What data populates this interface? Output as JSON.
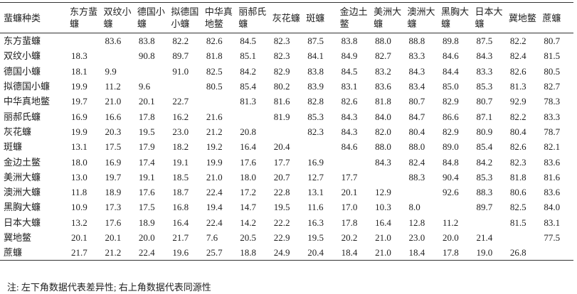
{
  "table": {
    "header": [
      "蜚蠊种类",
      "东方蜚蠊",
      "双纹小蠊",
      "德国小蠊",
      "拟德国小蠊",
      "中华真地鳖",
      "丽郝氏蠊",
      "灰花蠊",
      "斑蠊",
      "金边土鳖",
      "美洲大蠊",
      "澳洲大蠊",
      "黑胸大蠊",
      "日本大蠊",
      "冀地鳖",
      "蔗蠊"
    ],
    "rows": [
      [
        "东方蜚蠊",
        null,
        "83.6",
        "83.8",
        "82.2",
        "82.6",
        "84.5",
        "82.3",
        "87.5",
        "83.8",
        "88.0",
        "88.8",
        "89.8",
        "87.5",
        "82.2",
        "80.7"
      ],
      [
        "双纹小蠊",
        "18.3",
        null,
        "90.8",
        "89.7",
        "81.8",
        "85.1",
        "82.3",
        "84.1",
        "84.9",
        "82.7",
        "83.3",
        "84.6",
        "84.3",
        "82.4",
        "81.5"
      ],
      [
        "德国小蠊",
        "18.1",
        "9.9",
        null,
        "91.0",
        "82.5",
        "84.2",
        "82.9",
        "83.8",
        "84.5",
        "83.2",
        "84.3",
        "84.4",
        "83.3",
        "82.6",
        "80.5"
      ],
      [
        "拟德国小蠊",
        "19.9",
        "11.2",
        "9.6",
        null,
        "80.5",
        "85.4",
        "80.2",
        "83.9",
        "83.1",
        "83.6",
        "83.4",
        "85.0",
        "85.3",
        "81.3",
        "82.7"
      ],
      [
        "中华真地鳖",
        "19.7",
        "21.0",
        "20.1",
        "22.7",
        null,
        "81.3",
        "81.6",
        "82.8",
        "82.6",
        "81.8",
        "80.7",
        "82.9",
        "80.7",
        "92.9",
        "78.3"
      ],
      [
        "丽郝氏蠊",
        "16.9",
        "16.6",
        "17.8",
        "16.2",
        "21.6",
        null,
        "81.9",
        "85.3",
        "84.3",
        "84.0",
        "84.7",
        "86.6",
        "87.1",
        "82.2",
        "83.3"
      ],
      [
        "灰花蠊",
        "19.9",
        "20.3",
        "19.5",
        "23.0",
        "21.2",
        "20.8",
        null,
        "82.3",
        "84.3",
        "82.0",
        "80.4",
        "82.9",
        "80.9",
        "80.4",
        "78.7"
      ],
      [
        "斑蠊",
        "13.1",
        "17.5",
        "17.9",
        "18.2",
        "19.2",
        "16.4",
        "20.4",
        null,
        "84.6",
        "88.0",
        "88.0",
        "89.0",
        "85.4",
        "82.6",
        "82.1"
      ],
      [
        "金边土鳖",
        "18.0",
        "16.9",
        "17.4",
        "19.1",
        "19.9",
        "17.6",
        "17.7",
        "16.9",
        null,
        "84.3",
        "82.4",
        "84.8",
        "84.2",
        "82.3",
        "83.6"
      ],
      [
        "美洲大蠊",
        "13.0",
        "19.7",
        "19.1",
        "18.5",
        "21.0",
        "18.0",
        "20.7",
        "12.7",
        "17.7",
        null,
        "88.3",
        "90.4",
        "85.3",
        "81.8",
        "81.6"
      ],
      [
        "澳洲大蠊",
        "11.8",
        "18.9",
        "17.6",
        "18.7",
        "22.4",
        "17.2",
        "22.8",
        "13.1",
        "20.1",
        "12.9",
        null,
        "92.6",
        "88.3",
        "80.6",
        "83.6"
      ],
      [
        "黑胸大蠊",
        "10.9",
        "17.3",
        "17.5",
        "16.8",
        "19.4",
        "14.7",
        "19.5",
        "11.6",
        "17.0",
        "10.3",
        "8.0",
        null,
        "89.7",
        "82.5",
        "84.0"
      ],
      [
        "日本大蠊",
        "13.2",
        "17.6",
        "18.9",
        "16.4",
        "22.4",
        "14.2",
        "22.2",
        "16.3",
        "17.8",
        "16.4",
        "12.8",
        "11.2",
        null,
        "81.5",
        "83.1"
      ],
      [
        "冀地鳖",
        "20.1",
        "20.1",
        "20.0",
        "21.7",
        "7.6",
        "20.5",
        "22.9",
        "19.5",
        "20.2",
        "21.0",
        "23.0",
        "20.0",
        "21.4",
        null,
        "77.5"
      ],
      [
        "蔗蠊",
        "21.7",
        "21.2",
        "22.4",
        "19.6",
        "25.7",
        "18.8",
        "24.9",
        "20.4",
        "18.4",
        "21.0",
        "18.4",
        "17.8",
        "19.0",
        "26.8",
        null
      ]
    ],
    "note": "注: 左下角数据代表差异性; 右上角数据代表同源性"
  }
}
